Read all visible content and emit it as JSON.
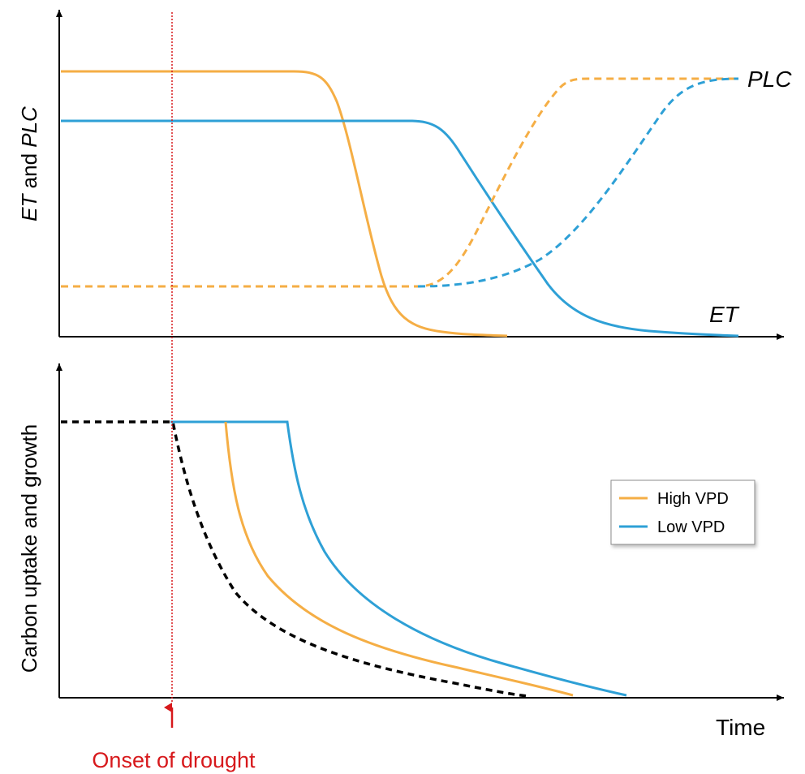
{
  "top_panel": {
    "y_axis_label_parts": {
      "et": "ET",
      "and": " and ",
      "plc": "PLC"
    },
    "curve_label_plc": "PLC",
    "curve_label_et": "ET"
  },
  "bottom_panel": {
    "y_axis_label": "Carbon uptake and growth",
    "x_axis_label": "Time"
  },
  "annotation": {
    "drought_label": "Onset of drought"
  },
  "legend": {
    "items": [
      {
        "label": "High VPD",
        "color": "#F5AE45"
      },
      {
        "label": "Low VPD",
        "color": "#2EA0D6"
      }
    ]
  },
  "colors": {
    "high_vpd": "#F5AE45",
    "low_vpd": "#2EA0D6",
    "drought_marker": "#D7191C",
    "axes": "#000000"
  }
}
